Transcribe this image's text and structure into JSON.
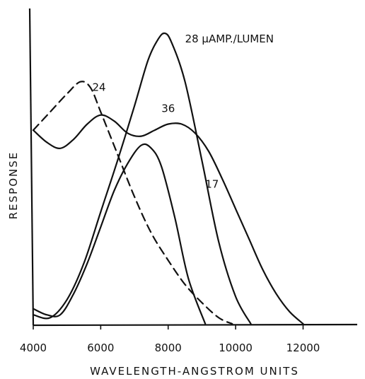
{
  "chart_data": {
    "type": "line",
    "title": "",
    "xlabel": "WAVELENGTH-ANGSTROM UNITS",
    "ylabel": "RESPONSE",
    "xlim": [
      4000,
      13500
    ],
    "ylim": [
      0,
      100
    ],
    "x_ticks": [
      4000,
      6000,
      8000,
      10000,
      12000
    ],
    "x_tick_labels": [
      "4000",
      "6000",
      "8000",
      "10000",
      "12000"
    ],
    "grid": false,
    "legend": "none",
    "series": [
      {
        "name": "28 μAMP./LUMEN",
        "label_x": 8500,
        "label_y": 93,
        "dash": false,
        "x": [
          4000,
          4500,
          5000,
          5500,
          6000,
          6500,
          7000,
          7400,
          7700,
          7900,
          8100,
          8500,
          9000,
          9500,
          10000,
          10450
        ],
        "y": [
          3,
          2,
          8,
          20,
          37,
          54,
          72,
          87,
          94,
          96,
          93,
          80,
          54,
          27,
          9,
          0
        ]
      },
      {
        "name": "24",
        "label_x": 5750,
        "label_y": 77,
        "dash": true,
        "x": [
          4000,
          4500,
          5000,
          5400,
          5700,
          6000,
          6500,
          7000,
          7500,
          8000,
          8500,
          9000,
          9500,
          9900
        ],
        "y": [
          64,
          70,
          76,
          80,
          78,
          70,
          56,
          42,
          30,
          21,
          13,
          7,
          2,
          0
        ]
      },
      {
        "name": "36",
        "label_x": 7800,
        "label_y": 70,
        "dash": false,
        "x": [
          4000,
          4400,
          4800,
          5200,
          5600,
          6000,
          6400,
          6800,
          7200,
          7600,
          8000,
          8400,
          8800,
          9200,
          9600,
          10000,
          10400,
          10800,
          11200,
          11600,
          12000
        ],
        "y": [
          64,
          60,
          58,
          61,
          66,
          69,
          67,
          63,
          62,
          64,
          66,
          66,
          63,
          57,
          48,
          38,
          28,
          18,
          10,
          4,
          0
        ]
      },
      {
        "name": "17",
        "label_x": 9100,
        "label_y": 45,
        "dash": false,
        "x": [
          4000,
          4400,
          4800,
          5200,
          5600,
          6000,
          6400,
          6800,
          7200,
          7500,
          7800,
          8200,
          8600,
          9100
        ],
        "y": [
          5,
          3,
          3,
          10,
          20,
          32,
          44,
          53,
          59,
          58,
          52,
          35,
          15,
          0
        ]
      }
    ]
  }
}
